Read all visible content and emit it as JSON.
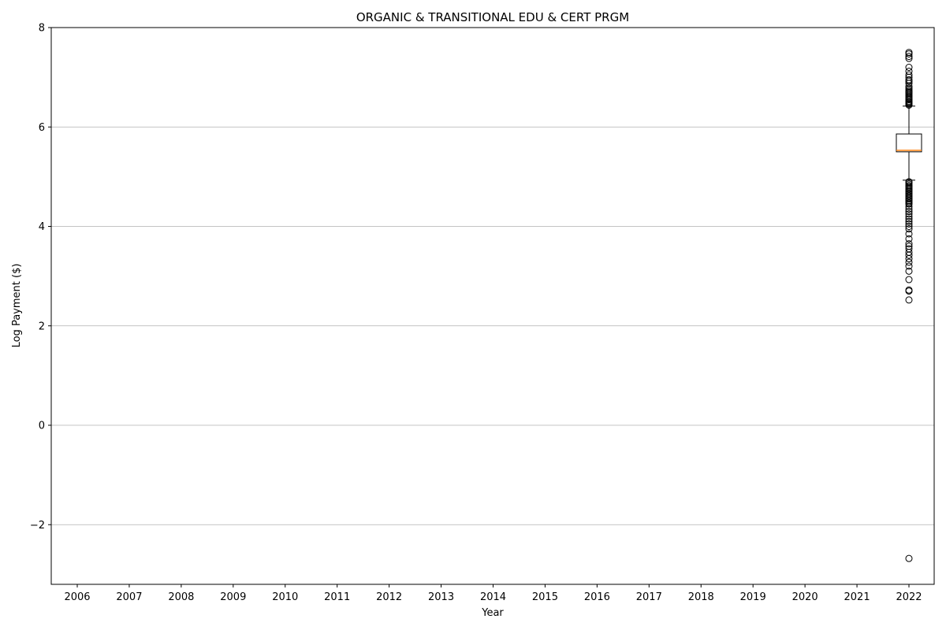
{
  "chart_data": {
    "type": "box",
    "title": "ORGANIC & TRANSITIONAL EDU & CERT PRGM",
    "xlabel": "Year",
    "ylabel": "Log Payment ($)",
    "categories": [
      "2006",
      "2007",
      "2008",
      "2009",
      "2010",
      "2011",
      "2012",
      "2013",
      "2014",
      "2015",
      "2016",
      "2017",
      "2018",
      "2019",
      "2020",
      "2021",
      "2022"
    ],
    "ylim": [
      -3.2,
      8
    ],
    "yticks": [
      -2,
      0,
      2,
      4,
      6,
      8
    ],
    "ytick_labels": [
      "−2",
      "0",
      "2",
      "4",
      "6",
      "8"
    ],
    "grid": "y",
    "boxes": [
      {
        "category": "2022",
        "whisker_low": 4.93,
        "q1": 5.5,
        "median": 5.53,
        "q3": 5.86,
        "whisker_high": 6.42,
        "outliers": [
          7.5,
          7.47,
          7.42,
          7.38,
          7.2,
          7.12,
          7.05,
          7.0,
          6.95,
          6.92,
          6.88,
          6.82,
          6.78,
          6.75,
          6.72,
          6.7,
          6.68,
          6.65,
          6.62,
          6.6,
          6.57,
          6.55,
          6.52,
          6.5,
          6.48,
          6.46,
          6.44,
          4.9,
          4.88,
          4.85,
          4.82,
          4.8,
          4.77,
          4.75,
          4.72,
          4.7,
          4.67,
          4.65,
          4.62,
          4.6,
          4.57,
          4.55,
          4.52,
          4.5,
          4.47,
          4.45,
          4.4,
          4.35,
          4.3,
          4.25,
          4.2,
          4.15,
          4.1,
          4.05,
          4.0,
          3.95,
          3.85,
          3.75,
          3.65,
          3.6,
          3.55,
          3.48,
          3.42,
          3.35,
          3.28,
          3.2,
          3.1,
          2.93,
          2.72,
          2.7,
          2.52,
          -2.68
        ],
        "median_color": "#ff7f0e"
      }
    ]
  }
}
